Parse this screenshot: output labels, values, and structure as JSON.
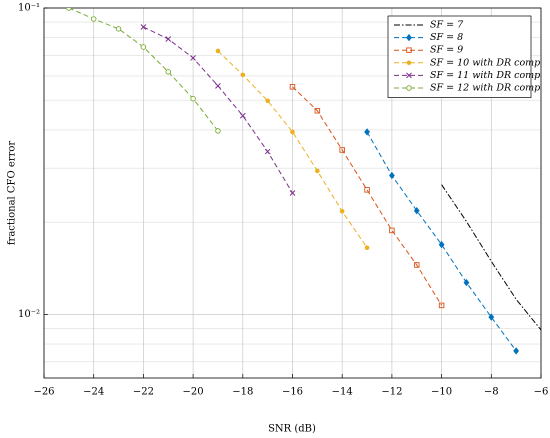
{
  "chart_data": {
    "type": "line",
    "x_label": "SNR (dB)",
    "y_label": "fractional CFO error",
    "log_y": true,
    "grid": true,
    "legend": "upper right",
    "xlim": [
      -26,
      -6
    ],
    "xticks": [
      {
        "value": -26,
        "label": "−26"
      },
      {
        "value": -24,
        "label": "−24"
      },
      {
        "value": -22,
        "label": "−22"
      },
      {
        "value": -20,
        "label": "−20"
      },
      {
        "value": -18,
        "label": "−18"
      },
      {
        "value": -16,
        "label": "−16"
      },
      {
        "value": -14,
        "label": "−14"
      },
      {
        "value": -12,
        "label": "−12"
      },
      {
        "value": -10,
        "label": "−10"
      },
      {
        "value": -8,
        "label": "−8"
      },
      {
        "value": -6,
        "label": "−6"
      }
    ],
    "ylim": [
      0.0062,
      0.1
    ],
    "yticks": [
      {
        "value": 0.01,
        "label": "10⁻²"
      },
      {
        "value": 0.1,
        "label": "10⁻¹"
      }
    ],
    "series": [
      {
        "name": "SF = 7",
        "color": "#000000",
        "marker": "none",
        "dash": "dashdot",
        "x": [
          -10,
          -9,
          -8,
          -7,
          -6
        ],
        "values": [
          0.0265,
          0.0201,
          0.0149,
          0.0112,
          0.0089
        ]
      },
      {
        "name": "SF = 8",
        "color": "#0072bd",
        "marker": "diamond",
        "dash": "dashed",
        "x": [
          -13,
          -12,
          -11,
          -10,
          -9,
          -8,
          -7
        ],
        "values": [
          0.0394,
          0.0284,
          0.0218,
          0.0169,
          0.0127,
          0.0098,
          0.0076
        ]
      },
      {
        "name": "SF = 9",
        "color": "#d95319",
        "marker": "square",
        "dash": "dashed",
        "x": [
          -16,
          -15,
          -14,
          -13,
          -12,
          -11,
          -10
        ],
        "values": [
          0.0553,
          0.0462,
          0.0344,
          0.0255,
          0.0188,
          0.0145,
          0.0107
        ]
      },
      {
        "name": "SF = 10 with DR comp",
        "color": "#edb120",
        "marker": "circle-filled",
        "dash": "dashed",
        "x": [
          -19,
          -18,
          -17,
          -16,
          -15,
          -14,
          -13
        ],
        "values": [
          0.0724,
          0.0605,
          0.0498,
          0.0394,
          0.0294,
          0.0217,
          0.0165
        ]
      },
      {
        "name": "SF = 11 with DR comp",
        "color": "#7e2f8e",
        "marker": "x",
        "dash": "dashed",
        "x": [
          -22,
          -21,
          -20,
          -19,
          -18,
          -17,
          -16
        ],
        "values": [
          0.0867,
          0.0792,
          0.0687,
          0.0557,
          0.0445,
          0.034,
          0.0249
        ]
      },
      {
        "name": "SF = 12 with DR comp",
        "color": "#77ac30",
        "marker": "circle-open",
        "dash": "dashed",
        "x": [
          -25,
          -24,
          -23,
          -22,
          -21,
          -20,
          -19
        ],
        "values": [
          0.1,
          0.0921,
          0.0855,
          0.0746,
          0.0619,
          0.0506,
          0.0397
        ]
      }
    ]
  }
}
